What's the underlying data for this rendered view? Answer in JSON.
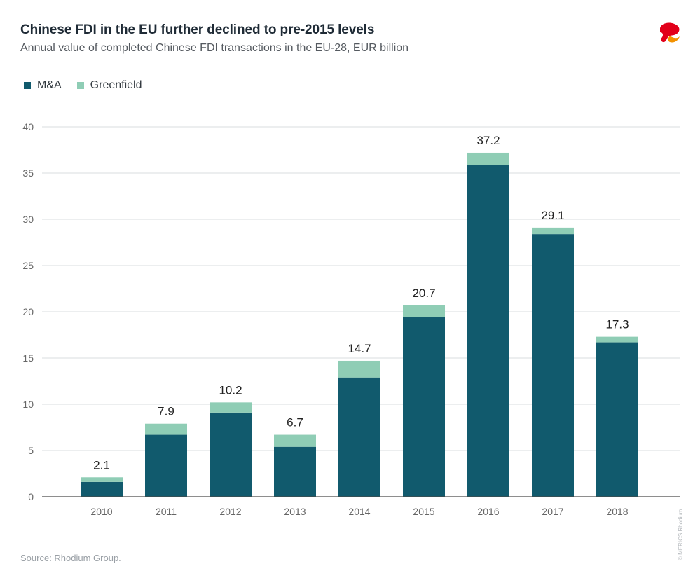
{
  "header": {
    "title": "Chinese FDI in the EU further declined to pre-2015 levels",
    "subtitle": "Annual value of completed Chinese FDI transactions in the EU-28, EUR billion"
  },
  "logo": {
    "icon": "merics-logo-icon",
    "colors": [
      "#e2001a",
      "#f39200"
    ]
  },
  "footer": {
    "source": "Source: Rhodium Group.",
    "credit": "© MERICS Rhodium"
  },
  "colors": {
    "ma": "#115a6d",
    "greenfield": "#8fcdb5",
    "grid": "#d9dcdf",
    "axis": "#4a4a4a",
    "tick": "#666666",
    "label": "#222222"
  },
  "chart_data": {
    "type": "bar",
    "stacked": true,
    "categories": [
      "2010",
      "2011",
      "2012",
      "2013",
      "2014",
      "2015",
      "2016",
      "2017",
      "2018"
    ],
    "series": [
      {
        "name": "M&A",
        "values": [
          1.6,
          6.7,
          9.1,
          5.4,
          12.9,
          19.4,
          35.9,
          28.4,
          16.7
        ]
      },
      {
        "name": "Greenfield",
        "values": [
          0.5,
          1.2,
          1.1,
          1.3,
          1.8,
          1.3,
          1.3,
          0.7,
          0.6
        ]
      }
    ],
    "totals": [
      "2.1",
      "7.9",
      "10.2",
      "6.7",
      "14.7",
      "20.7",
      "37.2",
      "29.1",
      "17.3"
    ],
    "ylim": [
      0,
      40
    ],
    "yticks": [
      0,
      5,
      10,
      15,
      20,
      25,
      30,
      35,
      40
    ],
    "xlabel": "",
    "ylabel": "",
    "grid": true,
    "legend_position": "top-left"
  }
}
